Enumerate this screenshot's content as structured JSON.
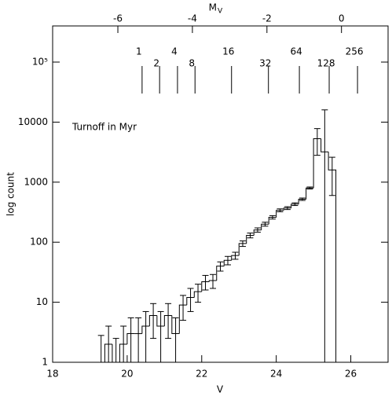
{
  "chart_data": {
    "type": "histogram",
    "xlabel": "V",
    "ylabel": "log count",
    "x2label": "M",
    "x2label_sub": "V",
    "bins": [
      19.2,
      19.4,
      19.6,
      19.8,
      20.0,
      20.2,
      20.4,
      20.6,
      20.8,
      21.0,
      21.2,
      21.4,
      21.6,
      21.8,
      22.0,
      22.2,
      22.4,
      22.6,
      22.8,
      23.0,
      23.2,
      23.4,
      23.6,
      23.8,
      24.0,
      24.2,
      24.4,
      24.6,
      24.8,
      25.0,
      25.2,
      25.4,
      25.6
    ],
    "values": [
      1,
      2,
      1,
      2,
      3,
      3,
      4,
      6,
      4,
      6,
      3,
      9,
      12,
      15,
      22,
      23,
      40,
      50,
      60,
      95,
      130,
      160,
      200,
      260,
      340,
      370,
      430,
      520,
      800,
      5300,
      3200,
      1600
    ],
    "errors": [
      1.8,
      2,
      1.5,
      2,
      2.5,
      2.5,
      3,
      3.5,
      3,
      3.5,
      2.5,
      4,
      5,
      5,
      6,
      6,
      7,
      8,
      8,
      10,
      12,
      13,
      15,
      17,
      19,
      20,
      22,
      24,
      30,
      2500,
      12800,
      1000
    ],
    "xlim": [
      18,
      27
    ],
    "xticks": [
      18,
      20,
      22,
      24,
      26
    ],
    "x2lim": [
      -7.75,
      1.25
    ],
    "x2ticks": [
      -6,
      -4,
      -2,
      0
    ],
    "ylim": [
      1,
      400000
    ],
    "yticks": [
      1,
      10,
      100,
      1000,
      10000,
      {
        "value": 100000,
        "label": "10⁵"
      }
    ],
    "log_y": true,
    "annotation": "Turnoff in Myr",
    "turnoff_labels": [
      "1",
      "2",
      "4",
      "8",
      "16",
      "32",
      "64",
      "128",
      "256"
    ],
    "turnoff_positions": [
      20.4,
      20.87,
      21.35,
      21.82,
      22.8,
      23.79,
      24.62,
      25.42,
      26.18
    ]
  }
}
